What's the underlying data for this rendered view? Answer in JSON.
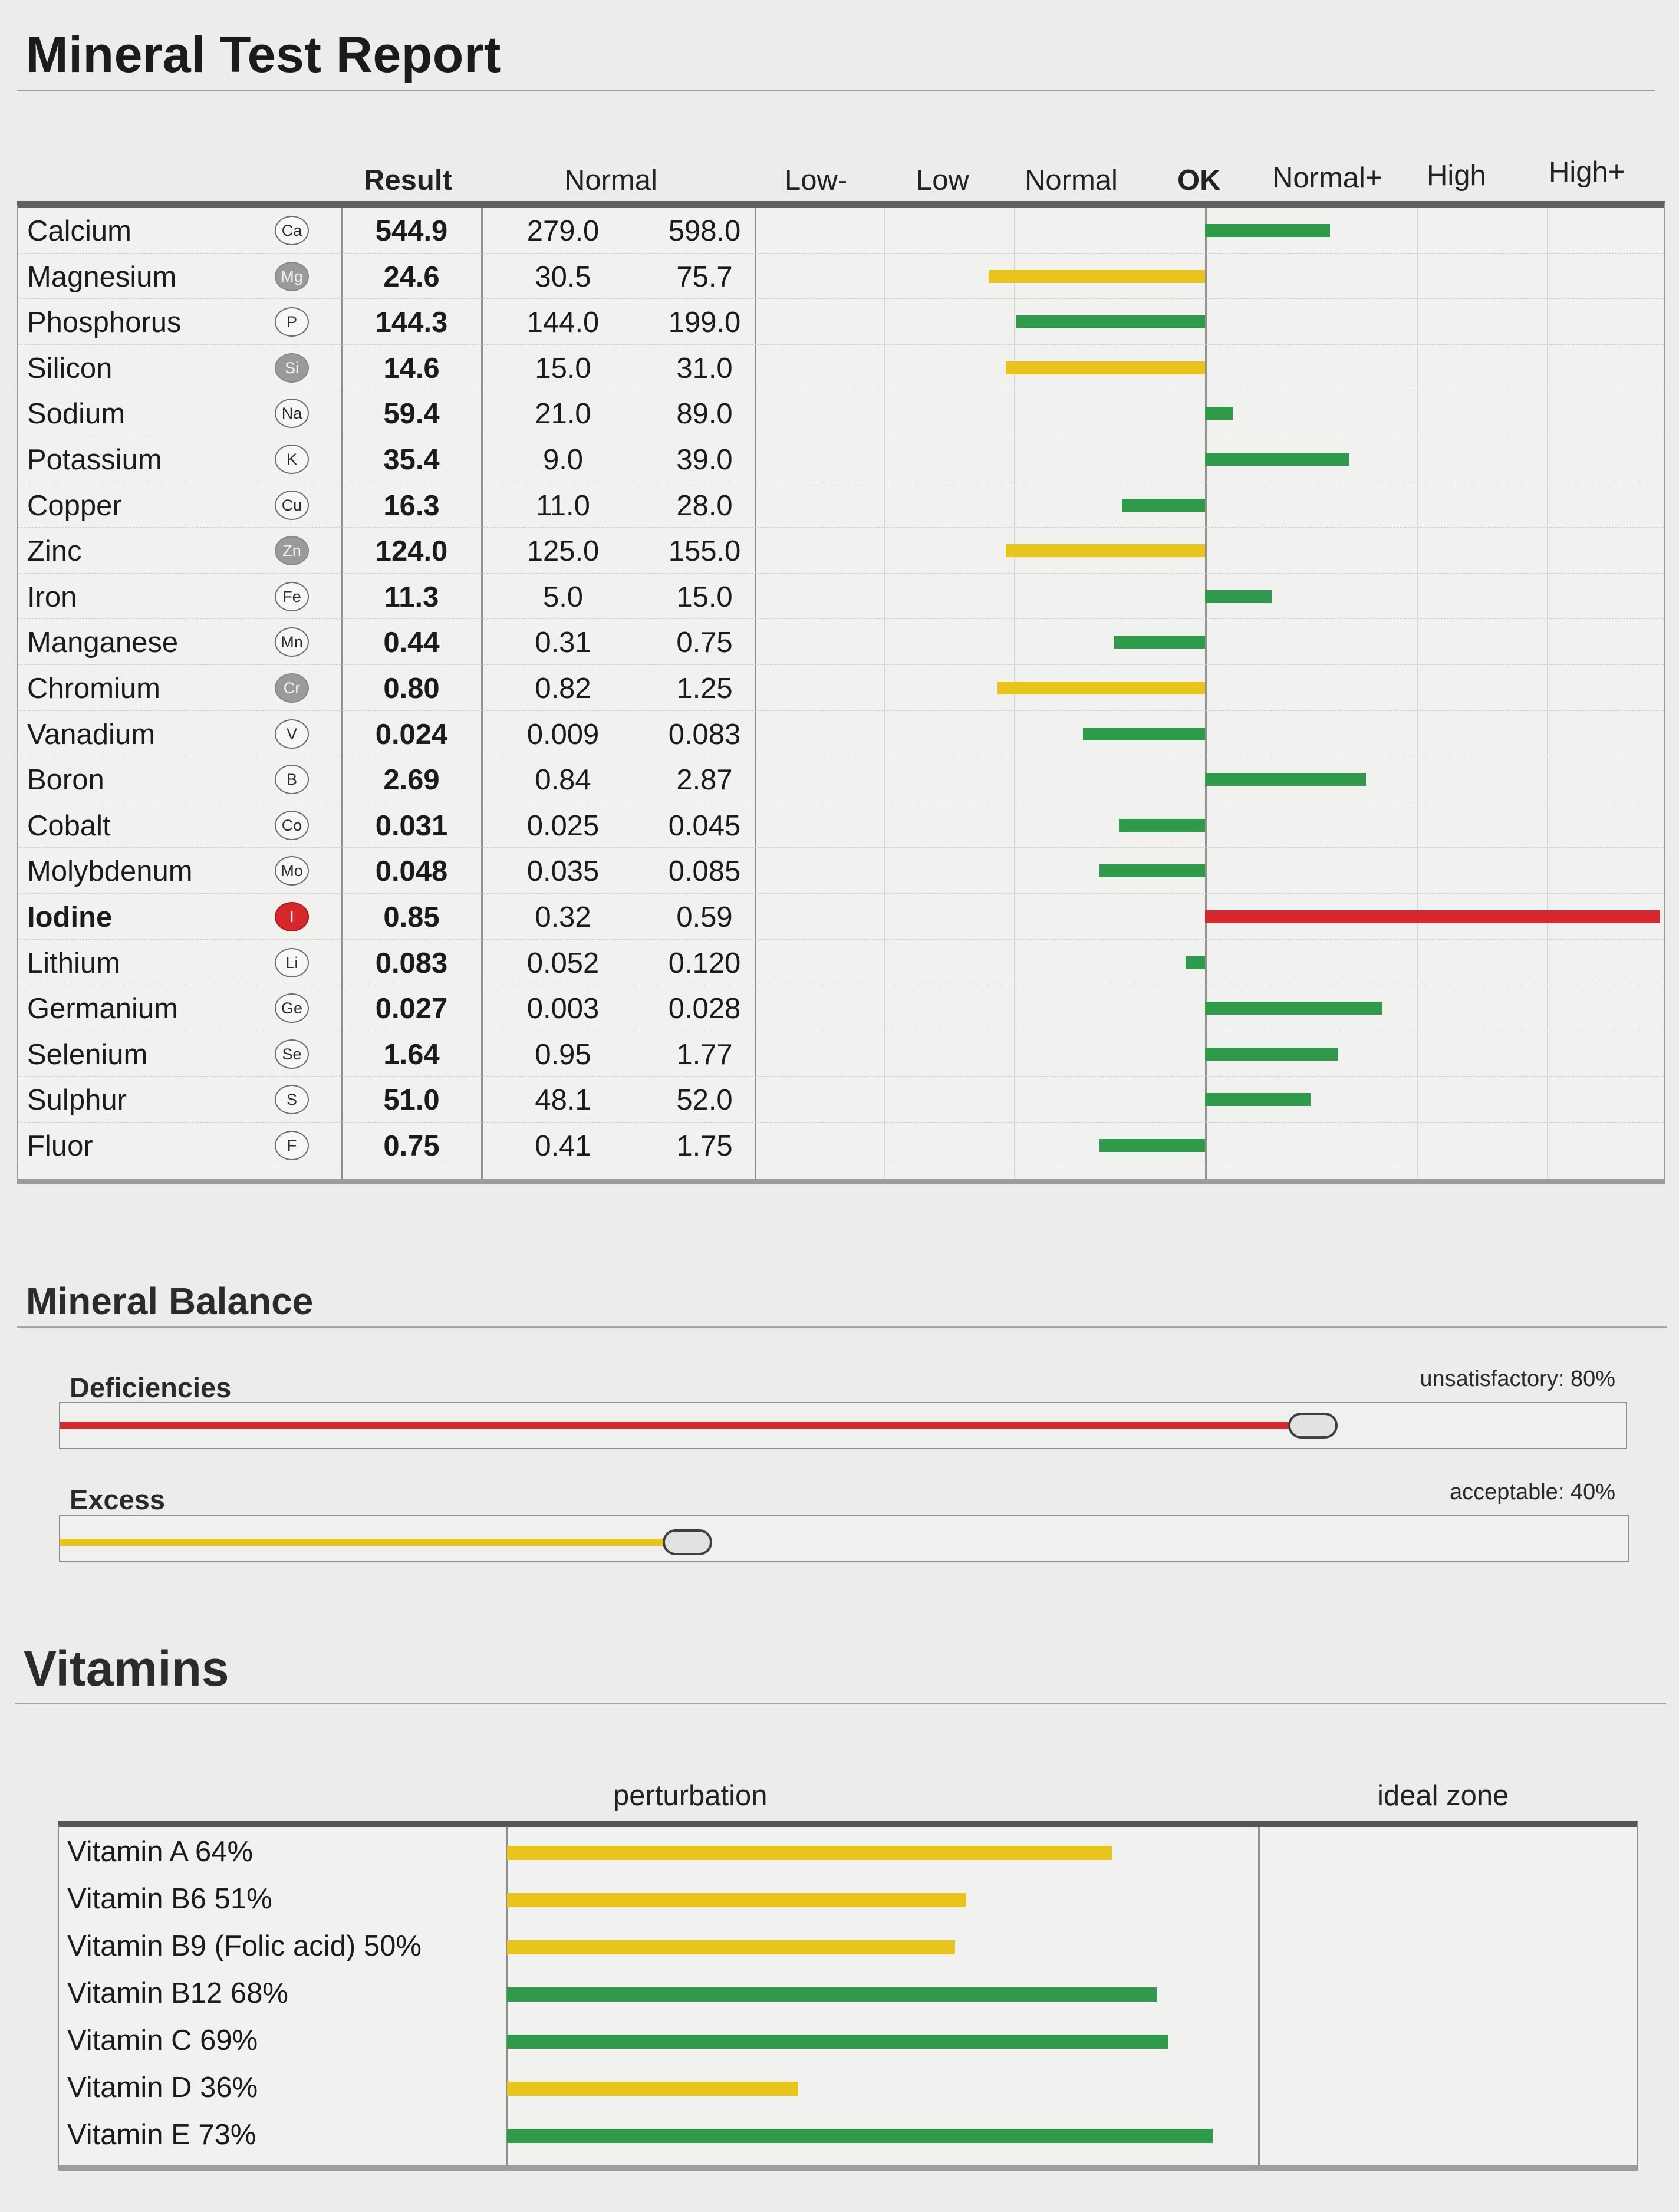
{
  "title": "Mineral Test Report",
  "colors": {
    "ok_green": "#2f9a4a",
    "warn_yellow": "#e8c51c",
    "alert_red": "#d4272e"
  },
  "minerals": {
    "headers": {
      "result": "Result",
      "normal": "Normal",
      "zones": [
        "Low-",
        "Low",
        "Normal",
        "OK",
        "Normal+",
        "High",
        "High+"
      ]
    },
    "rows": [
      {
        "name": "Calcium",
        "symbol": "Ca",
        "result": "544.9",
        "low": "279.0",
        "high": "598.0",
        "status": "ok",
        "deviation": 0.45
      },
      {
        "name": "Magnesium",
        "symbol": "Mg",
        "result": "24.6",
        "low": "30.5",
        "high": "75.7",
        "status": "low",
        "deviation": -0.78
      },
      {
        "name": "Phosphorus",
        "symbol": "P",
        "result": "144.3",
        "low": "144.0",
        "high": "199.0",
        "status": "ok",
        "deviation": -0.68
      },
      {
        "name": "Silicon",
        "symbol": "Si",
        "result": "14.6",
        "low": "15.0",
        "high": "31.0",
        "status": "low",
        "deviation": -0.72
      },
      {
        "name": "Sodium",
        "symbol": "Na",
        "result": "59.4",
        "low": "21.0",
        "high": "89.0",
        "status": "ok",
        "deviation": 0.1
      },
      {
        "name": "Potassium",
        "symbol": "K",
        "result": "35.4",
        "low": "9.0",
        "high": "39.0",
        "status": "ok",
        "deviation": 0.52
      },
      {
        "name": "Copper",
        "symbol": "Cu",
        "result": "16.3",
        "low": "11.0",
        "high": "28.0",
        "status": "ok",
        "deviation": -0.3
      },
      {
        "name": "Zinc",
        "symbol": "Zn",
        "result": "124.0",
        "low": "125.0",
        "high": "155.0",
        "status": "low",
        "deviation": -0.72
      },
      {
        "name": "Iron",
        "symbol": "Fe",
        "result": "11.3",
        "low": "5.0",
        "high": "15.0",
        "status": "ok",
        "deviation": 0.24
      },
      {
        "name": "Manganese",
        "symbol": "Mn",
        "result": "0.44",
        "low": "0.31",
        "high": "0.75",
        "status": "ok",
        "deviation": -0.33
      },
      {
        "name": "Chromium",
        "symbol": "Cr",
        "result": "0.80",
        "low": "0.82",
        "high": "1.25",
        "status": "low",
        "deviation": -0.75
      },
      {
        "name": "Vanadium",
        "symbol": "V",
        "result": "0.024",
        "low": "0.009",
        "high": "0.083",
        "status": "ok",
        "deviation": -0.44
      },
      {
        "name": "Boron",
        "symbol": "B",
        "result": "2.69",
        "low": "0.84",
        "high": "2.87",
        "status": "ok",
        "deviation": 0.58
      },
      {
        "name": "Cobalt",
        "symbol": "Co",
        "result": "0.031",
        "low": "0.025",
        "high": "0.045",
        "status": "ok",
        "deviation": -0.31
      },
      {
        "name": "Molybdenum",
        "symbol": "Mo",
        "result": "0.048",
        "low": "0.035",
        "high": "0.085",
        "status": "ok",
        "deviation": -0.38
      },
      {
        "name": "Iodine",
        "symbol": "I",
        "result": "0.85",
        "low": "0.32",
        "high": "0.59",
        "status": "high",
        "deviation": 1.68
      },
      {
        "name": "Lithium",
        "symbol": "Li",
        "result": "0.083",
        "low": "0.052",
        "high": "0.120",
        "status": "ok",
        "deviation": -0.07
      },
      {
        "name": "Germanium",
        "symbol": "Ge",
        "result": "0.027",
        "low": "0.003",
        "high": "0.028",
        "status": "ok",
        "deviation": 0.64
      },
      {
        "name": "Selenium",
        "symbol": "Se",
        "result": "1.64",
        "low": "0.95",
        "high": "1.77",
        "status": "ok",
        "deviation": 0.48
      },
      {
        "name": "Sulphur",
        "symbol": "S",
        "result": "51.0",
        "low": "48.1",
        "high": "52.0",
        "status": "ok",
        "deviation": 0.38
      },
      {
        "name": "Fluor",
        "symbol": "F",
        "result": "0.75",
        "low": "0.41",
        "high": "1.75",
        "status": "ok",
        "deviation": -0.38
      }
    ]
  },
  "balance": {
    "title": "Mineral Balance",
    "deficiencies": {
      "label": "Deficiencies",
      "status": "unsatisfactory: 80%",
      "percent": 80
    },
    "excess": {
      "label": "Excess",
      "status": "acceptable: 40%",
      "percent": 40
    }
  },
  "vitamins": {
    "title": "Vitamins",
    "headers": {
      "perturbation": "perturbation",
      "ideal": "ideal zone"
    },
    "items": [
      {
        "label": "Vitamin A 64%",
        "percent": 64,
        "status": "warn"
      },
      {
        "label": "Vitamin B6 51%",
        "percent": 51,
        "status": "warn"
      },
      {
        "label": "Vitamin B9 (Folic acid) 50%",
        "percent": 50,
        "status": "warn"
      },
      {
        "label": "Vitamin B12 68%",
        "percent": 68,
        "status": "ok"
      },
      {
        "label": "Vitamin C 69%",
        "percent": 69,
        "status": "ok"
      },
      {
        "label": "Vitamin D 36%",
        "percent": 36,
        "status": "warn"
      },
      {
        "label": "Vitamin E 73%",
        "percent": 73,
        "status": "ok"
      }
    ]
  }
}
